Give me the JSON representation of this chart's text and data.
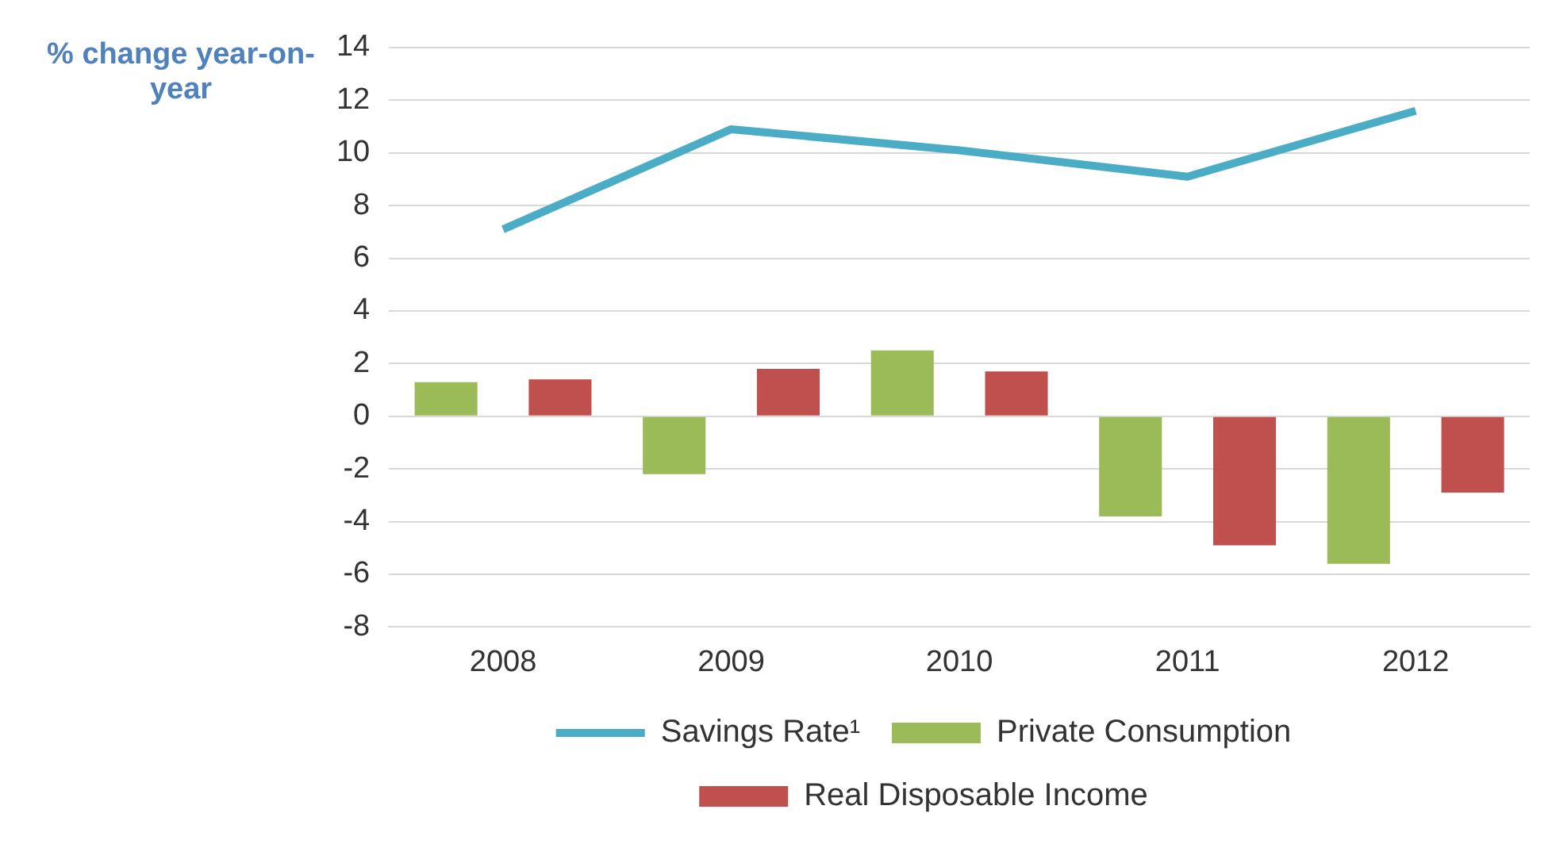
{
  "chart_data": {
    "type": "bar",
    "ylabel": "% change year-on-year",
    "categories": [
      "2008",
      "2009",
      "2010",
      "2011",
      "2012"
    ],
    "series": [
      {
        "name": "Private Consumption",
        "color": "#9bbb59",
        "values": [
          1.3,
          -2.2,
          2.5,
          -3.8,
          -5.6
        ]
      },
      {
        "name": "Real Disposable Income",
        "color": "#c0504d",
        "values": [
          1.4,
          1.8,
          1.7,
          -4.9,
          -2.9
        ]
      },
      {
        "name": "Savings Rate¹",
        "type": "line",
        "color": "#4bacc6",
        "values": [
          7.1,
          10.9,
          10.1,
          9.1,
          11.6
        ]
      }
    ],
    "ylim": [
      -8,
      14
    ],
    "yticks": [
      -8,
      -6,
      -4,
      -2,
      0,
      2,
      4,
      6,
      8,
      10,
      12,
      14
    ],
    "grid": "y",
    "legend": "bottom",
    "marker": "none"
  }
}
